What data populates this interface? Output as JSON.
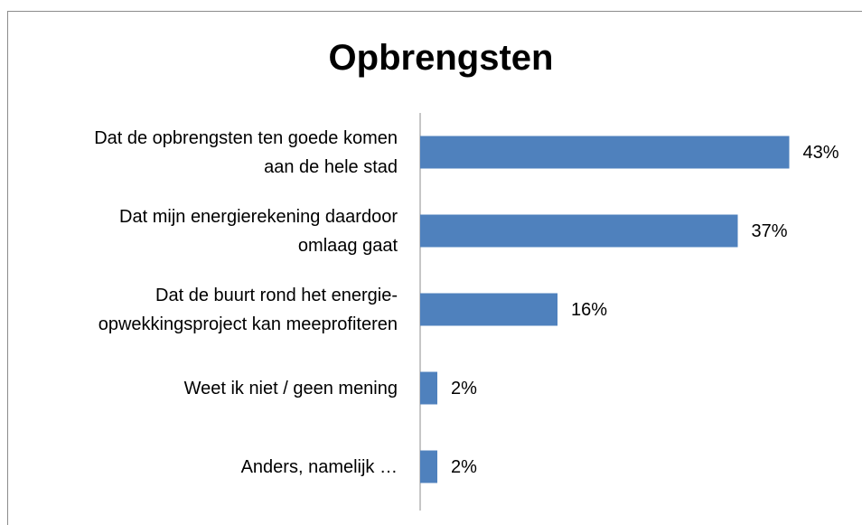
{
  "chart_data": {
    "type": "bar",
    "title": "Opbrengsten",
    "categories": [
      "Dat de opbrengsten ten goede komen\naan de hele stad",
      "Dat mijn energierekening daardoor\nomlaag gaat",
      "Dat de buurt rond het energie-\nopwekkingsproject kan meeprofiteren",
      "Weet ik niet / geen mening",
      "Anders, namelijk …"
    ],
    "values": [
      43,
      37,
      16,
      2,
      2
    ],
    "value_labels": [
      "43%",
      "37%",
      "16%",
      "2%",
      "2%"
    ],
    "color": "#4f81bd"
  }
}
